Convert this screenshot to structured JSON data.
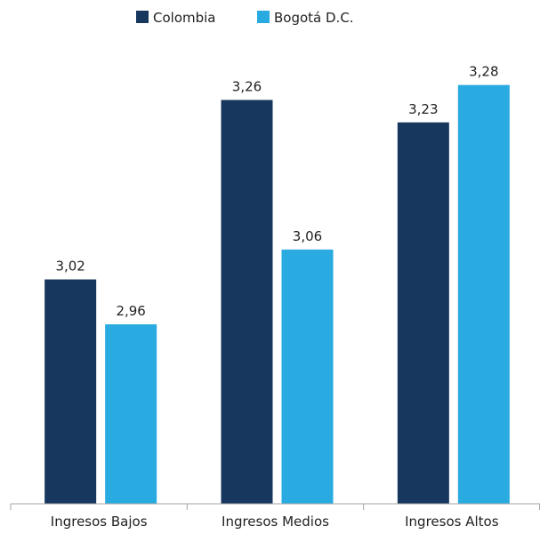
{
  "chart_data": {
    "type": "bar",
    "categories": [
      "Ingresos Bajos",
      "Ingresos Medios",
      "Ingresos Altos"
    ],
    "series": [
      {
        "name": "Colombia",
        "color": "#17375e",
        "values": [
          3.02,
          3.26,
          3.23
        ],
        "labels": [
          "3,02",
          "3,26",
          "3,23"
        ]
      },
      {
        "name": "Bogotá D.C.",
        "color": "#29abe2",
        "values": [
          2.96,
          3.06,
          3.28
        ],
        "labels": [
          "2,96",
          "3,06",
          "3,28"
        ]
      }
    ],
    "title": "",
    "xlabel": "",
    "ylabel": "",
    "ylim": [
      2.72,
      3.32
    ],
    "grid": false,
    "legend_position": "top-center"
  }
}
